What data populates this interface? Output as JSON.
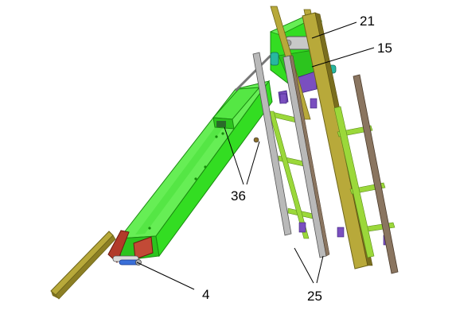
{
  "callouts": {
    "c21": "21",
    "c15": "15",
    "c36": "36",
    "c25": "25",
    "c4": "4"
  },
  "colors": {
    "frame_green": "#33dd22",
    "frame_green_dark": "#1aa612",
    "frame_green_light": "#66ee55",
    "rail_olive": "#b8a93a",
    "rail_olive_dark": "#7a6e1e",
    "rail_brown": "#8a7560",
    "rail_grey": "#b9b9b9",
    "rung_green": "#9bd83a",
    "bracket_purple": "#7a4fbf",
    "bracket_red": "#b23a2a",
    "cylinder_grey": "#c8c8c8",
    "roller_blue": "#3a6fd8",
    "teal": "#27b8a0"
  }
}
